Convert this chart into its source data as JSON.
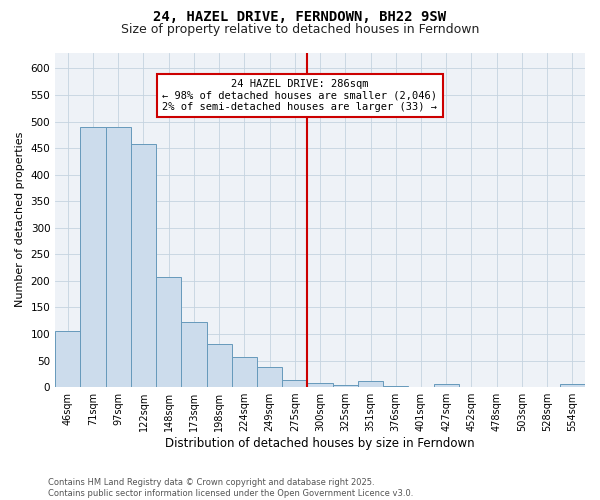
{
  "title": "24, HAZEL DRIVE, FERNDOWN, BH22 9SW",
  "subtitle": "Size of property relative to detached houses in Ferndown",
  "xlabel": "Distribution of detached houses by size in Ferndown",
  "ylabel": "Number of detached properties",
  "footer_line1": "Contains HM Land Registry data © Crown copyright and database right 2025.",
  "footer_line2": "Contains public sector information licensed under the Open Government Licence v3.0.",
  "categories": [
    "46sqm",
    "71sqm",
    "97sqm",
    "122sqm",
    "148sqm",
    "173sqm",
    "198sqm",
    "224sqm",
    "249sqm",
    "275sqm",
    "300sqm",
    "325sqm",
    "351sqm",
    "376sqm",
    "401sqm",
    "427sqm",
    "452sqm",
    "478sqm",
    "503sqm",
    "528sqm",
    "554sqm"
  ],
  "values": [
    105,
    490,
    490,
    458,
    207,
    123,
    82,
    57,
    37,
    14,
    8,
    3,
    11,
    2,
    0,
    6,
    0,
    0,
    0,
    0,
    6
  ],
  "bar_color": "#ccdcec",
  "bar_edge_color": "#6699bb",
  "annotation_line1": "24 HAZEL DRIVE: 286sqm",
  "annotation_line2": "← 98% of detached houses are smaller (2,046)",
  "annotation_line3": "2% of semi-detached houses are larger (33) →",
  "marker_color": "#cc0000",
  "annotation_box_edgecolor": "#cc0000",
  "ylim": [
    0,
    630
  ],
  "grid_color": "#c5d3e0",
  "bg_color": "#eef2f7",
  "title_fontsize": 10,
  "subtitle_fontsize": 9,
  "tick_fontsize": 7,
  "ylabel_fontsize": 8,
  "xlabel_fontsize": 8.5,
  "footer_fontsize": 6,
  "annotation_fontsize": 7.5
}
